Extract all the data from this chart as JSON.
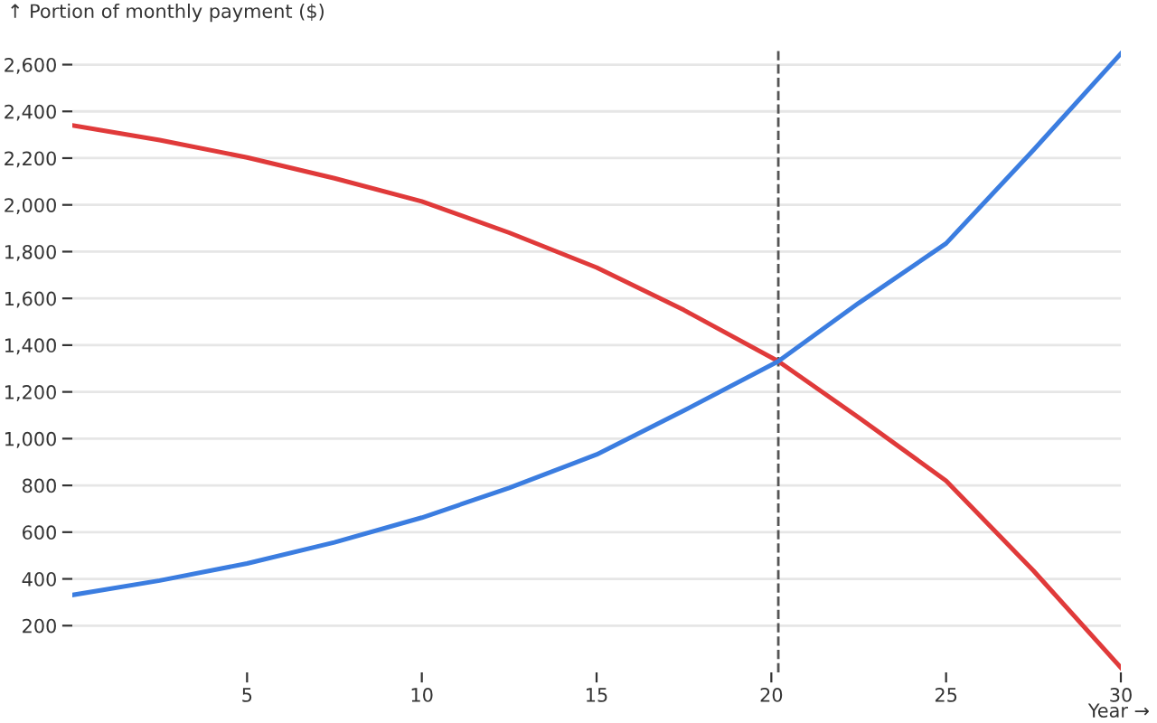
{
  "chart_data": {
    "type": "line",
    "xlabel": "Year →",
    "ylabel": "↑ Portion of monthly payment ($)",
    "series": [
      {
        "color": "#e03a3a",
        "x": [
          0,
          2.5,
          5,
          7.5,
          10,
          12.5,
          15,
          17.5,
          20.2,
          22.5,
          25,
          27.5,
          30
        ],
        "values": [
          2340,
          2277,
          2203,
          2114,
          2015,
          1881,
          1732,
          1550,
          1331,
          1090,
          820,
          435,
          20
        ]
      },
      {
        "color": "#3b7de0",
        "x": [
          0,
          2.5,
          5,
          7.5,
          10,
          12.5,
          15,
          17.5,
          20.2,
          22.5,
          25,
          27.5,
          30
        ],
        "values": [
          331,
          393,
          466,
          556,
          662,
          789,
          932,
          1120,
          1331,
          1580,
          1835,
          2235,
          2647
        ]
      }
    ],
    "xlim": [
      0,
      30
    ],
    "xticks": [
      5,
      10,
      15,
      20,
      25,
      30
    ],
    "ylim": [
      0,
      2660
    ],
    "yticks": [
      {
        "value": 200,
        "label": "200"
      },
      {
        "value": 400,
        "label": "400"
      },
      {
        "value": 600,
        "label": "600"
      },
      {
        "value": 800,
        "label": "800"
      },
      {
        "value": 1000,
        "label": "1,000"
      },
      {
        "value": 1200,
        "label": "1,200"
      },
      {
        "value": 1400,
        "label": "1,400"
      },
      {
        "value": 1600,
        "label": "1,600"
      },
      {
        "value": 1800,
        "label": "1,800"
      },
      {
        "value": 2000,
        "label": "2,000"
      },
      {
        "value": 2200,
        "label": "2,200"
      },
      {
        "value": 2400,
        "label": "2,400"
      },
      {
        "value": 2600,
        "label": "2,600"
      }
    ],
    "ref_lines": [
      {
        "axis": "x",
        "value": 20.2,
        "color": "#555555",
        "line_style": "dashed"
      }
    ],
    "grid": "y",
    "marker": "none",
    "line_style": "solid"
  }
}
